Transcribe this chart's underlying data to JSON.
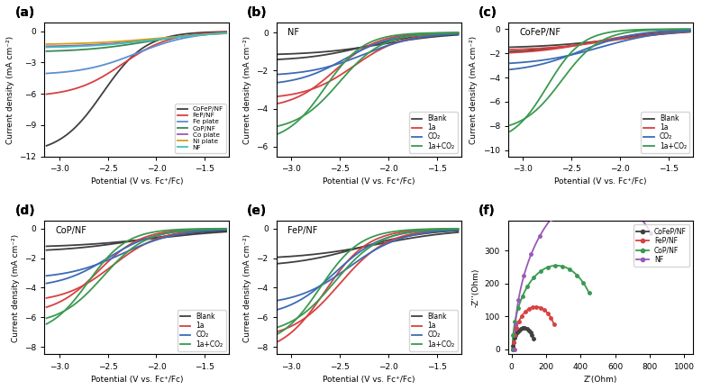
{
  "fig_width": 7.79,
  "fig_height": 4.33,
  "dpi": 100,
  "panel_a": {
    "xlabel": "Potential (V vs. Fc⁺/Fc)",
    "ylabel": "Current density (mA cm⁻²)",
    "xlim": [
      -3.15,
      -1.25
    ],
    "ylim": [
      -12,
      0.8
    ],
    "xticks": [
      -3.0,
      -2.5,
      -2.0,
      -1.5
    ],
    "yticks": [
      -12,
      -9,
      -6,
      -3,
      0
    ],
    "series": [
      {
        "label": "CoFeP/NF",
        "color": "#404040",
        "lw": 1.3,
        "y_max": -11.8,
        "steep": 4.5,
        "mid": -2.55
      },
      {
        "label": "FeP/NF",
        "color": "#d94040",
        "lw": 1.3,
        "y_max": -6.3,
        "steep": 4.0,
        "mid": -2.35
      },
      {
        "label": "Fe plate",
        "color": "#5b8fd4",
        "lw": 1.3,
        "y_max": -4.2,
        "steep": 3.5,
        "mid": -2.2
      },
      {
        "label": "CoP/NF",
        "color": "#3a8a50",
        "lw": 1.3,
        "y_max": -2.0,
        "steep": 3.0,
        "mid": -2.1
      },
      {
        "label": "Co plate",
        "color": "#9b59b6",
        "lw": 1.3,
        "y_max": -1.5,
        "steep": 2.8,
        "mid": -2.0
      },
      {
        "label": "Ni plate",
        "color": "#d4a017",
        "lw": 1.3,
        "y_max": -1.3,
        "steep": 2.5,
        "mid": -1.95
      },
      {
        "label": "NF",
        "color": "#40c0c0",
        "lw": 1.3,
        "y_max": -1.6,
        "steep": 2.8,
        "mid": -2.0
      }
    ]
  },
  "panel_b": {
    "inset_text": "NF",
    "xlabel": "Potential (V vs. Fc⁺/Fc)",
    "ylabel": "Current density (mA cm⁻²)",
    "xlim": [
      -3.15,
      -1.25
    ],
    "ylim": [
      -6.5,
      0.5
    ],
    "xticks": [
      -3.0,
      -2.5,
      -2.0,
      -1.5
    ],
    "yticks": [
      -6,
      -4,
      -2,
      0
    ],
    "series": [
      {
        "label": "Blank",
        "color": "#404040",
        "lw": 1.3,
        "y_fwd": -1.5,
        "y_bwd": -1.2,
        "steep_f": 3.2,
        "steep_b": 2.8,
        "mid_f": -2.25,
        "mid_b": -2.05
      },
      {
        "label": "1a",
        "color": "#d94040",
        "lw": 1.3,
        "y_fwd": -4.0,
        "y_bwd": -3.5,
        "steep_f": 4.5,
        "steep_b": 4.0,
        "mid_f": -2.55,
        "mid_b": -2.35
      },
      {
        "label": "CO₂",
        "color": "#3b6bb5",
        "lw": 1.3,
        "y_fwd": -2.8,
        "y_bwd": -2.3,
        "steep_f": 4.0,
        "steep_b": 3.5,
        "mid_f": -2.45,
        "mid_b": -2.25
      },
      {
        "label": "1a+CO₂",
        "color": "#3a9a50",
        "lw": 1.3,
        "y_fwd": -5.8,
        "y_bwd": -5.2,
        "steep_f": 5.0,
        "steep_b": 4.5,
        "mid_f": -2.65,
        "mid_b": -2.5
      }
    ]
  },
  "panel_c": {
    "inset_text": "CoFeP/NF",
    "xlabel": "Potential (V vs. Fc⁺/Fc)",
    "ylabel": "Current density (mA cm⁻²)",
    "xlim": [
      -3.15,
      -1.25
    ],
    "ylim": [
      -10.5,
      0.5
    ],
    "xticks": [
      -3.0,
      -2.5,
      -2.0,
      -1.5
    ],
    "yticks": [
      -10,
      -8,
      -6,
      -4,
      -2,
      0
    ],
    "series": [
      {
        "label": "Blank",
        "color": "#404040",
        "lw": 1.3,
        "y_fwd": -2.0,
        "y_bwd": -1.6,
        "steep_f": 2.8,
        "steep_b": 2.4,
        "mid_f": -2.2,
        "mid_b": -2.0
      },
      {
        "label": "1a",
        "color": "#d94040",
        "lw": 1.3,
        "y_fwd": -2.1,
        "y_bwd": -1.8,
        "steep_f": 3.0,
        "steep_b": 2.6,
        "mid_f": -2.25,
        "mid_b": -2.05
      },
      {
        "label": "CO₂",
        "color": "#3b6bb5",
        "lw": 1.3,
        "y_fwd": -3.6,
        "y_bwd": -3.0,
        "steep_f": 3.5,
        "steep_b": 3.0,
        "mid_f": -2.4,
        "mid_b": -2.2
      },
      {
        "label": "1a+CO₂",
        "color": "#3a9a50",
        "lw": 1.3,
        "y_fwd": -9.5,
        "y_bwd": -8.5,
        "steep_f": 5.5,
        "steep_b": 5.0,
        "mid_f": -2.75,
        "mid_b": -2.6
      }
    ]
  },
  "panel_d": {
    "inset_text": "CoP/NF",
    "xlabel": "Potential (V vs. Fc⁺/Fc)",
    "ylabel": "Current density (mA cm⁻²)",
    "xlim": [
      -3.15,
      -1.25
    ],
    "ylim": [
      -8.5,
      0.5
    ],
    "xticks": [
      -3.0,
      -2.5,
      -2.0,
      -1.5
    ],
    "yticks": [
      -8,
      -6,
      -4,
      -2,
      0
    ],
    "series": [
      {
        "label": "Blank",
        "color": "#404040",
        "lw": 1.3,
        "y_fwd": -1.6,
        "y_bwd": -1.3,
        "steep_f": 2.5,
        "steep_b": 2.2,
        "mid_f": -2.2,
        "mid_b": -2.0
      },
      {
        "label": "1a",
        "color": "#d94040",
        "lw": 1.3,
        "y_fwd": -5.8,
        "y_bwd": -5.0,
        "steep_f": 4.5,
        "steep_b": 4.0,
        "mid_f": -2.6,
        "mid_b": -2.45
      },
      {
        "label": "CO₂",
        "color": "#3b6bb5",
        "lw": 1.3,
        "y_fwd": -4.0,
        "y_bwd": -3.4,
        "steep_f": 4.0,
        "steep_b": 3.5,
        "mid_f": -2.5,
        "mid_b": -2.35
      },
      {
        "label": "1a+CO₂",
        "color": "#3a9a50",
        "lw": 1.3,
        "y_fwd": -7.2,
        "y_bwd": -6.5,
        "steep_f": 5.0,
        "steep_b": 4.5,
        "mid_f": -2.7,
        "mid_b": -2.55
      }
    ]
  },
  "panel_e": {
    "inset_text": "FeP/NF",
    "xlabel": "Potential (V vs. Fc⁺/Fc)",
    "ylabel": "Current density (mA cm⁻²)",
    "xlim": [
      -3.15,
      -1.25
    ],
    "ylim": [
      -8.5,
      0.5
    ],
    "xticks": [
      -3.0,
      -2.5,
      -2.0,
      -1.5
    ],
    "yticks": [
      -8,
      -6,
      -4,
      -2,
      0
    ],
    "series": [
      {
        "label": "Blank",
        "color": "#404040",
        "lw": 1.3,
        "y_fwd": -2.6,
        "y_bwd": -2.1,
        "steep_f": 2.8,
        "steep_b": 2.4,
        "mid_f": -2.3,
        "mid_b": -2.1
      },
      {
        "label": "1a",
        "color": "#d94040",
        "lw": 1.3,
        "y_fwd": -8.5,
        "y_bwd": -7.5,
        "steep_f": 4.5,
        "steep_b": 4.0,
        "mid_f": -2.65,
        "mid_b": -2.5
      },
      {
        "label": "CO₂",
        "color": "#3b6bb5",
        "lw": 1.3,
        "y_fwd": -6.0,
        "y_bwd": -5.2,
        "steep_f": 4.0,
        "steep_b": 3.6,
        "mid_f": -2.55,
        "mid_b": -2.4
      },
      {
        "label": "1a+CO₂",
        "color": "#3a9a50",
        "lw": 1.3,
        "y_fwd": -8.0,
        "y_bwd": -7.2,
        "steep_f": 4.8,
        "steep_b": 4.3,
        "mid_f": -2.7,
        "mid_b": -2.55
      }
    ]
  },
  "panel_f": {
    "xlabel": "Z’(Ohm)",
    "ylabel": "-Z’’(Ohm)",
    "xlim": [
      -20,
      1050
    ],
    "ylim": [
      -15,
      390
    ],
    "xticks": [
      0,
      200,
      400,
      600,
      800,
      1000
    ],
    "yticks": [
      0,
      100,
      200,
      300
    ],
    "series": [
      {
        "label": "CoFeP/NF",
        "color": "#404040",
        "lw": 1.3,
        "r": 65,
        "x0": 5,
        "theta_end": 2.6
      },
      {
        "label": "FeP/NF",
        "color": "#d94040",
        "lw": 1.3,
        "r": 130,
        "x0": 10,
        "theta_end": 2.5
      },
      {
        "label": "CoP/NF",
        "color": "#3a9a50",
        "lw": 1.3,
        "r": 255,
        "x0": 5,
        "theta_end": 2.4
      },
      {
        "label": "NF",
        "color": "#9b59b6",
        "lw": 1.3,
        "r": 475,
        "x0": 15,
        "theta_end": 2.3
      }
    ]
  }
}
